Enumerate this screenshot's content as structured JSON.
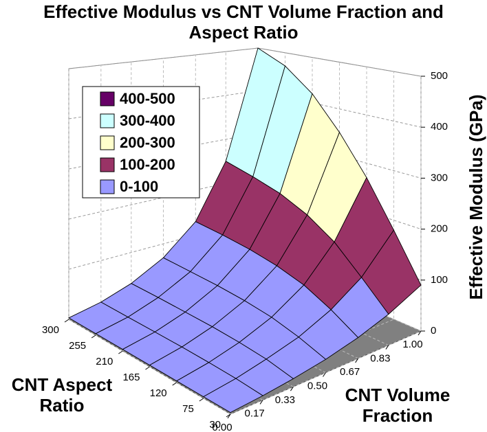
{
  "chart_data": {
    "type": "surface",
    "title": "Effective Modulus vs CNT Volume Fraction and Aspect Ratio",
    "xlabel": "CNT Volume Fraction",
    "ylabel": "CNT Aspect Ratio",
    "zlabel": "Effective Modulus (GPa)",
    "x": [
      0,
      0.17,
      0.33,
      0.5,
      0.67,
      0.83,
      1
    ],
    "y": [
      30,
      75,
      120,
      165,
      210,
      255,
      300
    ],
    "z": [
      [
        3,
        8,
        15,
        25,
        40,
        60,
        90
      ],
      [
        3,
        12,
        25,
        42,
        70,
        110,
        180
      ],
      [
        3,
        14,
        30,
        55,
        95,
        160,
        270
      ],
      [
        3,
        15,
        33,
        62,
        110,
        195,
        350
      ],
      [
        3,
        15,
        34,
        66,
        120,
        220,
        420
      ],
      [
        3,
        15,
        35,
        68,
        126,
        236,
        470
      ],
      [
        3,
        15,
        35,
        70,
        130,
        250,
        500
      ]
    ],
    "xlim": [
      0,
      1
    ],
    "xticks": [
      {
        "value": 0,
        "label": "0.00"
      },
      {
        "value": 0.17,
        "label": "0.17"
      },
      {
        "value": 0.33,
        "label": "0.33"
      },
      {
        "value": 0.5,
        "label": "0.50"
      },
      {
        "value": 0.67,
        "label": "0.67"
      },
      {
        "value": 0.83,
        "label": "0.83"
      },
      {
        "value": 1,
        "label": "1.00"
      }
    ],
    "ylim": [
      30,
      300
    ],
    "yticks": [
      30,
      75,
      120,
      165,
      210,
      255,
      300
    ],
    "zlim": [
      0,
      500
    ],
    "zticks": [
      0,
      100,
      200,
      300,
      400,
      500
    ],
    "legend": [
      {
        "name": "400-500",
        "color": "#660066"
      },
      {
        "name": "300-400",
        "color": "#ccffff"
      },
      {
        "name": "200-300",
        "color": "#ffffcc"
      },
      {
        "name": "100-200",
        "color": "#993366"
      },
      {
        "name": "0-100",
        "color": "#9999ff"
      }
    ],
    "grid": true
  }
}
